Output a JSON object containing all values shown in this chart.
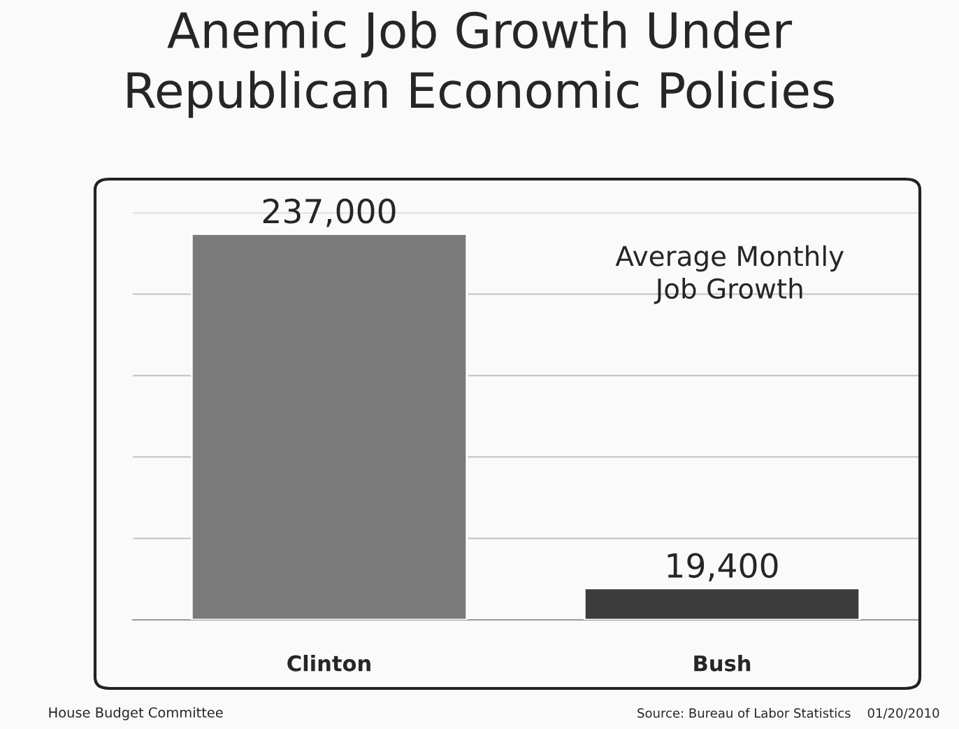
{
  "chart_data": {
    "type": "bar",
    "title": "Anemic Job Growth Under\nRepublican Economic Policies",
    "categories": [
      "Clinton",
      "Bush"
    ],
    "values": [
      237000,
      19400
    ],
    "colors": [
      "#7a7a7a",
      "#3c3c3c"
    ],
    "value_labels": [
      "237,000",
      "19,400"
    ],
    "ylim": [
      0,
      250000
    ],
    "yticks": [
      {
        "value": 50000,
        "label": null
      },
      {
        "value": 100000,
        "label": null
      },
      {
        "value": 150000,
        "label": null
      },
      {
        "value": 200000,
        "label": null
      },
      {
        "value": 250000,
        "label": null
      }
    ],
    "grid": "y",
    "tick_labels": "x",
    "annotations": [
      "Average Monthly\nJob Growth",
      "House Budget Committee",
      "Source: Bureau of Labor Statistics    01/20/2010"
    ]
  }
}
